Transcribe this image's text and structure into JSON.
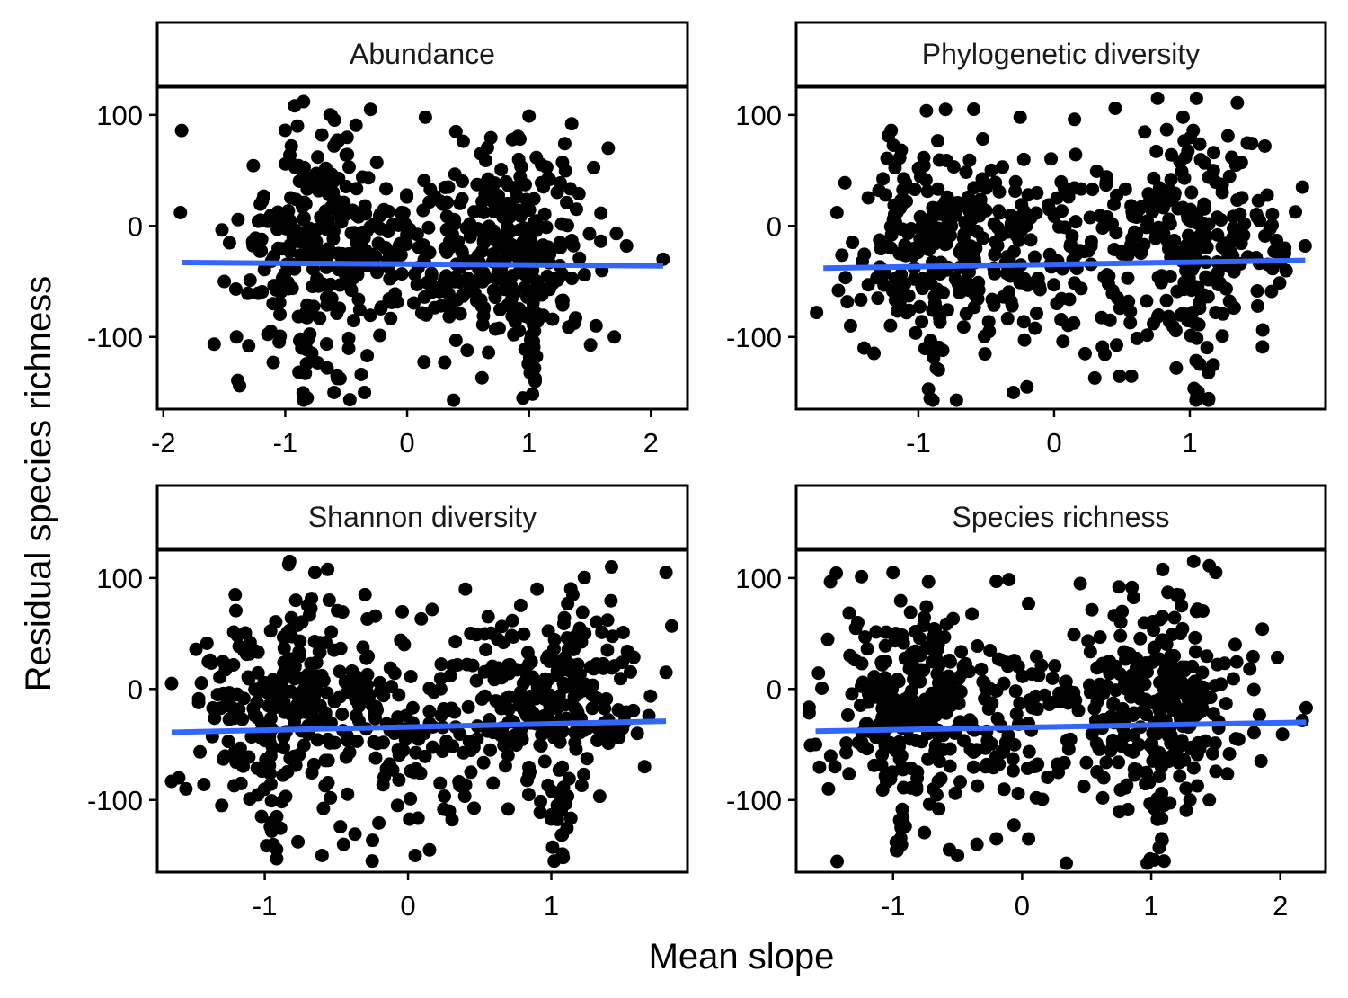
{
  "chart_data": {
    "type": "scatter",
    "xlabel": "Mean slope",
    "ylabel": "Residual species richness",
    "colors": {
      "points": "#000000",
      "fit_line": "#3366ff"
    },
    "legend": "none",
    "grid": false,
    "panels": [
      {
        "title": "Abundance",
        "xlim": [
          -2.05,
          2.3
        ],
        "ylim": [
          -165,
          125
        ],
        "xticks": [
          -2,
          -1,
          0,
          1,
          2
        ],
        "xtick_labels": [
          "-2",
          "-1",
          "0",
          "1",
          "2"
        ],
        "yticks": [
          100,
          0,
          -100
        ],
        "ytick_labels": [
          "100",
          "0",
          "-100"
        ],
        "fit_line": {
          "x": [
            -1.85,
            2.1
          ],
          "y": [
            -33,
            -36
          ]
        },
        "points": [
          [
            -1.85,
            86
          ],
          [
            -1.86,
            12
          ],
          [
            -0.85,
            112
          ],
          [
            -0.9,
            90
          ],
          [
            -0.95,
            72
          ],
          [
            -0.7,
            82
          ],
          [
            -0.6,
            72
          ],
          [
            -0.3,
            105
          ],
          [
            0.15,
            98
          ],
          [
            0.4,
            85
          ],
          [
            1.0,
            99
          ],
          [
            1.35,
            92
          ],
          [
            1.65,
            70
          ],
          [
            -0.82,
            -155
          ],
          [
            -0.6,
            -150
          ],
          [
            -0.35,
            -150
          ],
          [
            0.95,
            -155
          ],
          [
            1.05,
            -140
          ],
          [
            2.1,
            -30
          ],
          [
            1.8,
            -18
          ],
          [
            1.7,
            -100
          ],
          [
            1.55,
            -90
          ],
          [
            -1.5,
            -50
          ],
          [
            -1.4,
            -100
          ],
          [
            -1.3,
            -108
          ],
          [
            -1.1,
            -70
          ]
        ],
        "clusters": [
          {
            "cx": -0.75,
            "cy": -15,
            "sx": 0.32,
            "sy": 45,
            "n": 220
          },
          {
            "cx": 0.9,
            "cy": -20,
            "sx": 0.32,
            "sy": 45,
            "n": 220
          },
          {
            "cx": 0.1,
            "cy": -25,
            "sx": 0.55,
            "sy": 45,
            "n": 160
          },
          {
            "cx": -0.85,
            "cy": -120,
            "sx": 0.04,
            "sy": 20,
            "n": 12
          },
          {
            "cx": 1.05,
            "cy": -115,
            "sx": 0.04,
            "sy": 22,
            "n": 14
          }
        ]
      },
      {
        "title": "Phylogenetic diversity",
        "xlim": [
          -1.9,
          2.0
        ],
        "ylim": [
          -165,
          125
        ],
        "xticks": [
          -1,
          0,
          1
        ],
        "xtick_labels": [
          "-1",
          "0",
          "1"
        ],
        "yticks": [
          100,
          0,
          -100
        ],
        "ytick_labels": [
          "100",
          "0",
          "-100"
        ],
        "fit_line": {
          "x": [
            -1.7,
            1.85
          ],
          "y": [
            -38,
            -31
          ]
        },
        "points": [
          [
            1.35,
            111
          ],
          [
            -0.8,
            105
          ],
          [
            0.45,
            106
          ],
          [
            0.15,
            96
          ],
          [
            -1.2,
            86
          ],
          [
            -0.25,
            98
          ],
          [
            0.95,
            98
          ],
          [
            -1.75,
            -78
          ],
          [
            -1.5,
            -90
          ],
          [
            -1.4,
            -110
          ],
          [
            -0.3,
            -150
          ],
          [
            -0.2,
            -145
          ],
          [
            0.3,
            -137
          ],
          [
            1.05,
            -155
          ],
          [
            0.9,
            -128
          ],
          [
            1.83,
            35
          ],
          [
            1.85,
            -18
          ],
          [
            1.7,
            -20
          ],
          [
            -1.6,
            12
          ]
        ],
        "clusters": [
          {
            "cx": -0.8,
            "cy": -15,
            "sx": 0.32,
            "sy": 45,
            "n": 220
          },
          {
            "cx": 1.05,
            "cy": -15,
            "sx": 0.3,
            "sy": 45,
            "n": 220
          },
          {
            "cx": 0.1,
            "cy": -25,
            "sx": 0.5,
            "sy": 45,
            "n": 150
          },
          {
            "cx": -0.9,
            "cy": -120,
            "sx": 0.04,
            "sy": 18,
            "n": 12
          },
          {
            "cx": 1.08,
            "cy": -120,
            "sx": 0.04,
            "sy": 22,
            "n": 14
          }
        ]
      },
      {
        "title": "Shannon diversity",
        "xlim": [
          -1.75,
          1.95
        ],
        "ylim": [
          -165,
          125
        ],
        "xticks": [
          -1,
          0,
          1
        ],
        "xtick_labels": [
          "-1",
          "0",
          "1"
        ],
        "yticks": [
          100,
          0,
          -100
        ],
        "ytick_labels": [
          "100",
          "0",
          "-100"
        ],
        "fit_line": {
          "x": [
            -1.65,
            1.8
          ],
          "y": [
            -39,
            -29
          ]
        },
        "points": [
          [
            1.42,
            110
          ],
          [
            1.8,
            105
          ],
          [
            -0.65,
            105
          ],
          [
            -0.55,
            80
          ],
          [
            -0.3,
            85
          ],
          [
            0.4,
            90
          ],
          [
            0.9,
            90
          ],
          [
            1.15,
            85
          ],
          [
            -1.65,
            5
          ],
          [
            -1.6,
            -80
          ],
          [
            -1.55,
            -90
          ],
          [
            -0.6,
            -150
          ],
          [
            -0.45,
            -140
          ],
          [
            -0.25,
            -155
          ],
          [
            0.05,
            -150
          ],
          [
            0.15,
            -145
          ],
          [
            1.02,
            -155
          ],
          [
            1.8,
            15
          ],
          [
            1.6,
            -40
          ],
          [
            1.65,
            -70
          ],
          [
            -1.3,
            -105
          ]
        ],
        "clusters": [
          {
            "cx": -0.9,
            "cy": -10,
            "sx": 0.3,
            "sy": 45,
            "n": 230
          },
          {
            "cx": 1.0,
            "cy": -10,
            "sx": 0.32,
            "sy": 45,
            "n": 230
          },
          {
            "cx": 0.05,
            "cy": -25,
            "sx": 0.5,
            "sy": 45,
            "n": 150
          },
          {
            "cx": -0.95,
            "cy": -125,
            "sx": 0.04,
            "sy": 15,
            "n": 12
          },
          {
            "cx": 1.05,
            "cy": -120,
            "sx": 0.04,
            "sy": 22,
            "n": 14
          }
        ]
      },
      {
        "title": "Species richness",
        "xlim": [
          -1.75,
          2.35
        ],
        "ylim": [
          -165,
          125
        ],
        "xticks": [
          -1,
          0,
          1,
          2
        ],
        "xtick_labels": [
          "-1",
          "0",
          "1",
          "2"
        ],
        "yticks": [
          100,
          0,
          -100
        ],
        "ytick_labels": [
          "100",
          "0",
          "-100"
        ],
        "fit_line": {
          "x": [
            -1.6,
            2.2
          ],
          "y": [
            -38,
            -30
          ]
        },
        "points": [
          [
            1.45,
            111
          ],
          [
            1.5,
            105
          ],
          [
            -1.0,
            105
          ],
          [
            -0.2,
            97
          ],
          [
            0.45,
            95
          ],
          [
            0.75,
            92
          ],
          [
            1.2,
            85
          ],
          [
            1.35,
            70
          ],
          [
            2.2,
            -17
          ],
          [
            1.85,
            -65
          ],
          [
            1.65,
            40
          ],
          [
            -1.6,
            -50
          ],
          [
            -1.5,
            -90
          ],
          [
            -1.45,
            -70
          ],
          [
            -0.5,
            -150
          ],
          [
            -0.35,
            -140
          ],
          [
            -0.2,
            -135
          ],
          [
            0.05,
            -135
          ],
          [
            1.1,
            -155
          ],
          [
            1.3,
            -100
          ],
          [
            1.45,
            -100
          ]
        ],
        "clusters": [
          {
            "cx": -0.85,
            "cy": -15,
            "sx": 0.32,
            "sy": 45,
            "n": 230
          },
          {
            "cx": 1.1,
            "cy": -10,
            "sx": 0.3,
            "sy": 45,
            "n": 230
          },
          {
            "cx": 0.1,
            "cy": -25,
            "sx": 0.55,
            "sy": 45,
            "n": 150
          },
          {
            "cx": -0.95,
            "cy": -120,
            "sx": 0.04,
            "sy": 18,
            "n": 12
          },
          {
            "cx": 1.05,
            "cy": -125,
            "sx": 0.04,
            "sy": 22,
            "n": 14
          }
        ]
      }
    ]
  }
}
